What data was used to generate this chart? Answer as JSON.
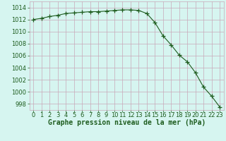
{
  "x": [
    0,
    1,
    2,
    3,
    4,
    5,
    6,
    7,
    8,
    9,
    10,
    11,
    12,
    13,
    14,
    15,
    16,
    17,
    18,
    19,
    20,
    21,
    22,
    23
  ],
  "y": [
    1012.0,
    1012.2,
    1012.5,
    1012.7,
    1013.0,
    1013.1,
    1013.2,
    1013.3,
    1013.3,
    1013.4,
    1013.5,
    1013.6,
    1013.6,
    1013.5,
    1013.0,
    1011.5,
    1009.3,
    1007.8,
    1006.1,
    1005.0,
    1003.2,
    1000.8,
    999.3,
    997.5
  ],
  "line_color": "#1e5c1e",
  "marker": "+",
  "marker_size": 4,
  "marker_color": "#1e5c1e",
  "bg_color": "#d6f5f0",
  "grid_color": "#c8a8b8",
  "plot_bg_color": "#d6f5f0",
  "title": "Graphe pression niveau de la mer (hPa)",
  "title_color": "#1e5c1e",
  "title_fontsize": 7.0,
  "tick_color": "#1e5c1e",
  "tick_fontsize": 6.0,
  "ylim": [
    997,
    1015
  ],
  "xlim": [
    -0.5,
    23.5
  ],
  "xticks": [
    0,
    1,
    2,
    3,
    4,
    5,
    6,
    7,
    8,
    9,
    10,
    11,
    12,
    13,
    14,
    15,
    16,
    17,
    18,
    19,
    20,
    21,
    22,
    23
  ],
  "yticks": [
    998,
    1000,
    1002,
    1004,
    1006,
    1008,
    1010,
    1012,
    1014
  ]
}
